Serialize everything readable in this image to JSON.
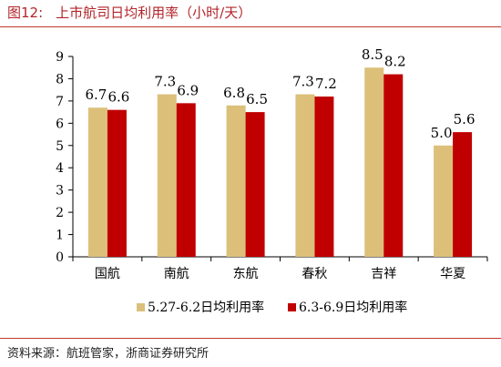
{
  "figure": {
    "number": "图12:",
    "title": "上市航司日均利用率（小时/天）"
  },
  "source": "资料来源：航班管家，浙商证券研究所",
  "colors": {
    "series1": "#dcc07a",
    "series2": "#c00000",
    "rule": "#c0392b",
    "title": "#b3242a"
  },
  "chart_data": {
    "type": "bar",
    "categories": [
      "国航",
      "南航",
      "东航",
      "春秋",
      "吉祥",
      "华夏"
    ],
    "series": [
      {
        "name": "5.27-6.2日均利用率",
        "values": [
          6.7,
          7.3,
          6.8,
          7.3,
          8.5,
          5.0
        ],
        "labels": [
          "6.7",
          "7.3",
          "6.8",
          "7.3",
          "8.5",
          "5.0"
        ]
      },
      {
        "name": "6.3-6.9日均利用率",
        "values": [
          6.6,
          6.9,
          6.5,
          7.2,
          8.2,
          5.6
        ],
        "labels": [
          "6.6",
          "6.9",
          "6.5",
          "7.2",
          "8.2",
          "5.6"
        ]
      }
    ],
    "ylim": [
      0,
      9
    ],
    "yticks": [
      "0",
      "1",
      "2",
      "3",
      "4",
      "5",
      "6",
      "7",
      "8",
      "9"
    ],
    "grid": false,
    "legend_position": "bottom"
  }
}
